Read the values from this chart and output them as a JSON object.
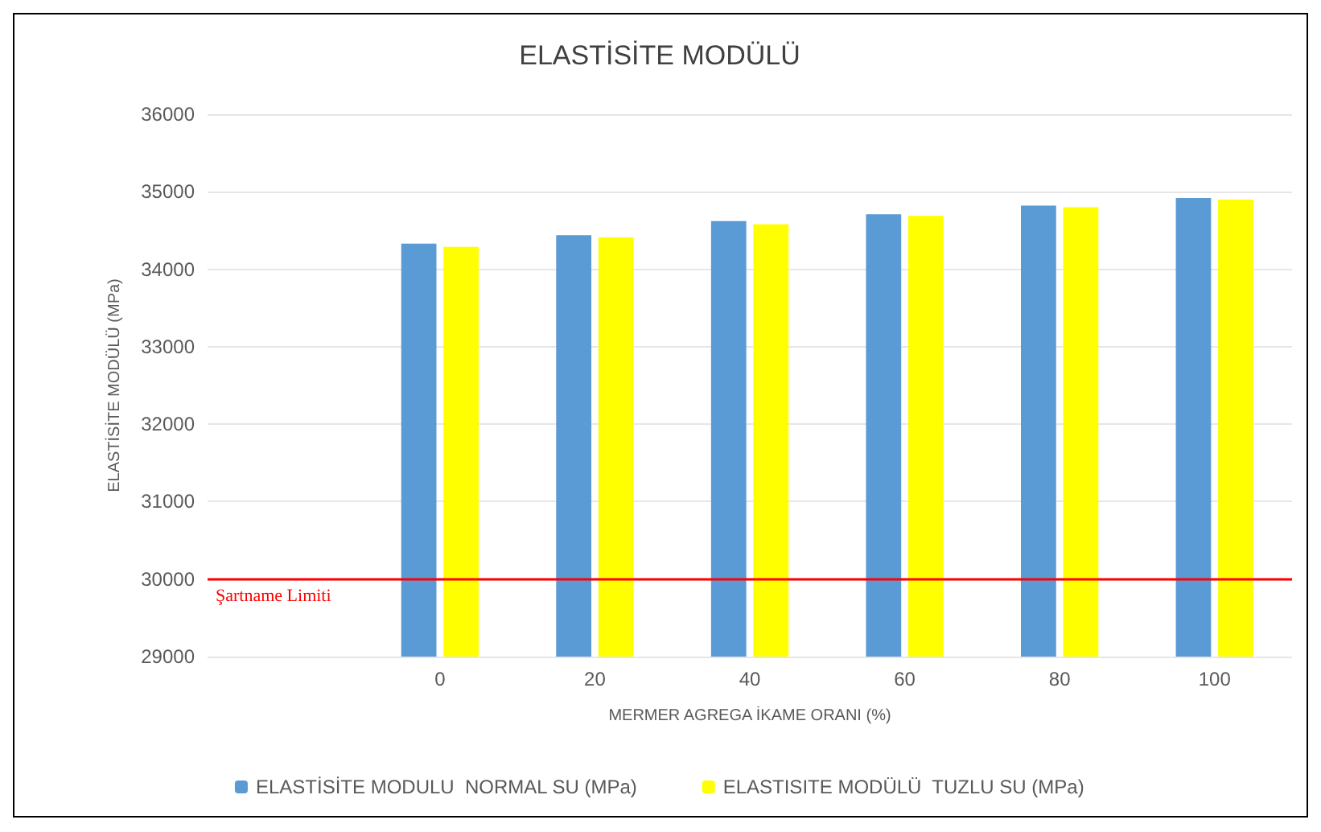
{
  "chart_data": {
    "type": "bar",
    "title": "ELASTİSİTE MODÜLÜ",
    "xlabel": "MERMER AGREGA İKAME ORANI (%)",
    "ylabel": "ELASTİSİTE MODÜLÜ (MPa)",
    "categories": [
      null,
      "0",
      "20",
      "40",
      "60",
      "80",
      "100"
    ],
    "series": [
      {
        "name": "ELASTİSİTE MODULU  NORMAL SU (MPa)",
        "color": "#5b9bd5",
        "values": [
          null,
          34330,
          34440,
          34620,
          34710,
          34820,
          34920
        ]
      },
      {
        "name": "ELASTISITE MODÜLÜ  TUZLU SU (MPa)",
        "color": "#ffff00",
        "values": [
          null,
          34290,
          34410,
          34580,
          34690,
          34800,
          34900
        ]
      }
    ],
    "ylim": [
      29000,
      36000
    ],
    "yticks": [
      29000,
      30000,
      31000,
      32000,
      33000,
      34000,
      35000,
      36000
    ],
    "ref_lines": [
      {
        "axis": "y",
        "value": 30000,
        "label": "Şartname Limiti",
        "color": "#ff0000",
        "line_style": "solid"
      }
    ],
    "grid": "y",
    "legend": "bottom"
  }
}
